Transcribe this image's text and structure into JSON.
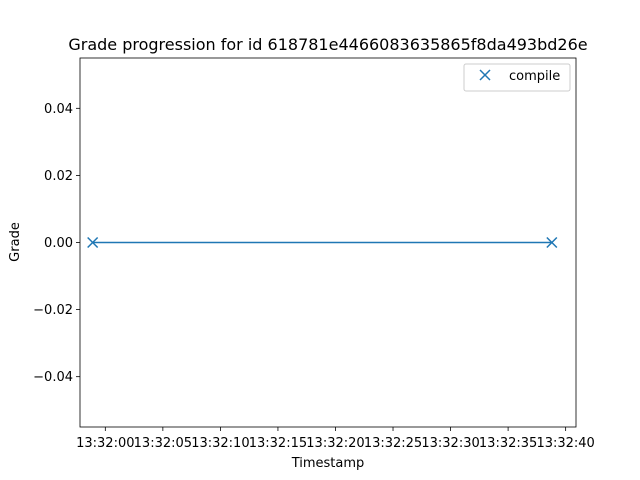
{
  "chart_data": {
    "type": "line",
    "title": "Grade progression for id 618781e4466083635865f8da493bd26e",
    "xlabel": "Timestamp",
    "ylabel": "Grade",
    "x_ticks": [
      "13:32:00",
      "13:32:05",
      "13:32:10",
      "13:32:15",
      "13:32:20",
      "13:32:25",
      "13:32:30",
      "13:32:35",
      "13:32:40"
    ],
    "xlim": [
      "13:31:57.8",
      "13:32:40.9"
    ],
    "y_ticks": [
      0.04,
      0.02,
      0.0,
      -0.02,
      -0.04
    ],
    "y_tick_labels": [
      "0.04",
      "0.02",
      "0.00",
      "−0.02",
      "−0.04"
    ],
    "ylim": [
      -0.055,
      0.055
    ],
    "grid": false,
    "series": [
      {
        "name": "compile",
        "marker": "x",
        "points": [
          {
            "x": "13:31:58.9",
            "y": 0.0
          },
          {
            "x": "13:32:38.8",
            "y": 0.0
          }
        ]
      }
    ],
    "legend": {
      "position": "top-right",
      "entries": [
        "compile"
      ]
    },
    "colors": {
      "series": "#1f77b4"
    }
  }
}
